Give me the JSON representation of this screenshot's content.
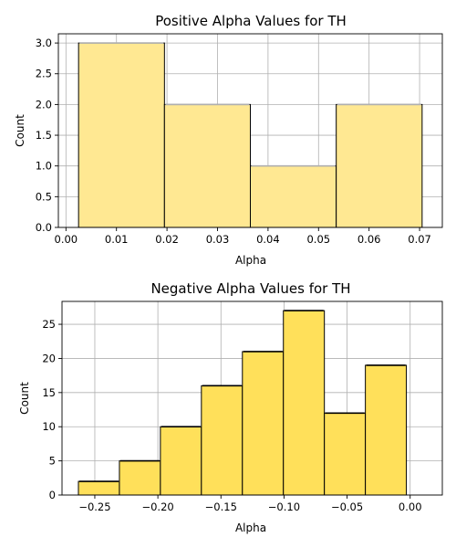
{
  "chart_data": [
    {
      "type": "bar",
      "title": "Positive Alpha Values for TH",
      "xlabel": "Alpha",
      "ylabel": "Count",
      "bin_edges": [
        0.0025,
        0.0195,
        0.0365,
        0.0535,
        0.0705
      ],
      "values": [
        3,
        2,
        1,
        2
      ],
      "xlim": [
        -0.0015,
        0.0745
      ],
      "ylim": [
        0,
        3.15
      ],
      "xticks": [
        0.0,
        0.01,
        0.02,
        0.03,
        0.04,
        0.05,
        0.06,
        0.07
      ],
      "xtick_labels": [
        "0.00",
        "0.01",
        "0.02",
        "0.03",
        "0.04",
        "0.05",
        "0.06",
        "0.07"
      ],
      "yticks": [
        0.0,
        0.5,
        1.0,
        1.5,
        2.0,
        2.5,
        3.0
      ],
      "ytick_labels": [
        "0.0",
        "0.5",
        "1.0",
        "1.5",
        "2.0",
        "2.5",
        "3.0"
      ],
      "grid": true,
      "color": "#ffe892",
      "edge_color": "#000000",
      "bin_top_color": "#b0b0b0"
    },
    {
      "type": "bar",
      "title": "Negative Alpha Values for TH",
      "xlabel": "Alpha",
      "ylabel": "Count",
      "bin_edges": [
        -0.263,
        -0.2305,
        -0.198,
        -0.1655,
        -0.133,
        -0.1005,
        -0.068,
        -0.0355,
        -0.003
      ],
      "values": [
        2,
        5,
        10,
        16,
        21,
        27,
        12,
        19
      ],
      "xlim": [
        -0.276,
        0.0255
      ],
      "ylim": [
        0,
        28.35
      ],
      "xticks": [
        -0.25,
        -0.2,
        -0.15,
        -0.1,
        -0.05,
        0.0
      ],
      "xtick_labels": [
        "−0.25",
        "−0.20",
        "−0.15",
        "−0.10",
        "−0.05",
        "0.00"
      ],
      "yticks": [
        0,
        5,
        10,
        15,
        20,
        25
      ],
      "ytick_labels": [
        "0",
        "5",
        "10",
        "15",
        "20",
        "25"
      ],
      "grid": true,
      "color": "#ffe05a",
      "edge_color": "#000000",
      "bin_top_color": "#000000"
    }
  ]
}
